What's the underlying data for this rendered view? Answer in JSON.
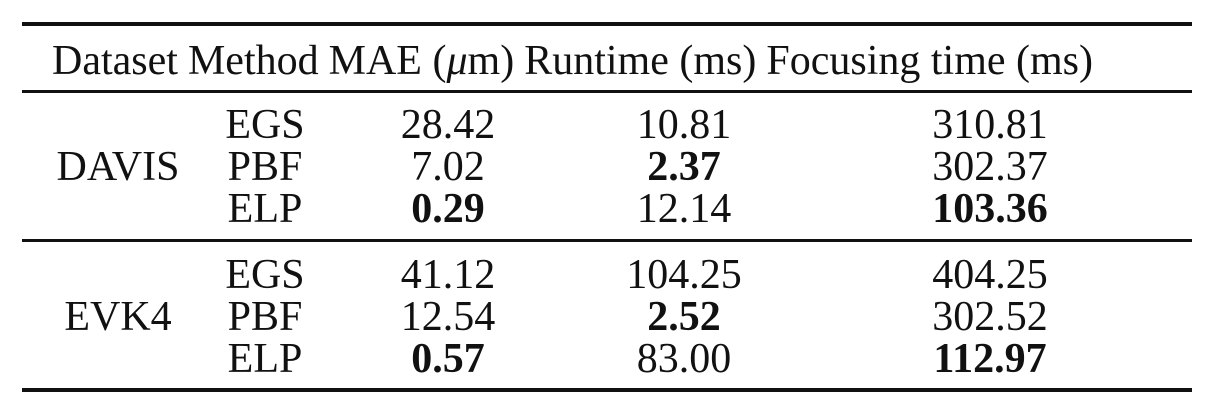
{
  "table": {
    "headers": {
      "dataset": "Dataset",
      "method": "Method",
      "mae_prefix": "MAE (",
      "mae_mu": "μ",
      "mae_suffix": "m)",
      "runtime": "Runtime (ms)",
      "focusing": "Focusing time (ms)"
    },
    "groups": [
      {
        "dataset": "DAVIS",
        "rows": [
          {
            "method": "EGS",
            "mae": "28.42",
            "runtime": "10.81",
            "focusing": "310.81",
            "bold_mae": false,
            "bold_runtime": false,
            "bold_focusing": false
          },
          {
            "method": "PBF",
            "mae": "7.02",
            "runtime": "2.37",
            "focusing": "302.37",
            "bold_mae": false,
            "bold_runtime": true,
            "bold_focusing": false
          },
          {
            "method": "ELP",
            "mae": "0.29",
            "runtime": "12.14",
            "focusing": "103.36",
            "bold_mae": true,
            "bold_runtime": false,
            "bold_focusing": true
          }
        ]
      },
      {
        "dataset": "EVK4",
        "rows": [
          {
            "method": "EGS",
            "mae": "41.12",
            "runtime": "104.25",
            "focusing": "404.25",
            "bold_mae": false,
            "bold_runtime": false,
            "bold_focusing": false
          },
          {
            "method": "PBF",
            "mae": "12.54",
            "runtime": "2.52",
            "focusing": "302.52",
            "bold_mae": false,
            "bold_runtime": true,
            "bold_focusing": false
          },
          {
            "method": "ELP",
            "mae": "0.57",
            "runtime": "83.00",
            "focusing": "112.97",
            "bold_mae": true,
            "bold_runtime": false,
            "bold_focusing": true
          }
        ]
      }
    ]
  }
}
